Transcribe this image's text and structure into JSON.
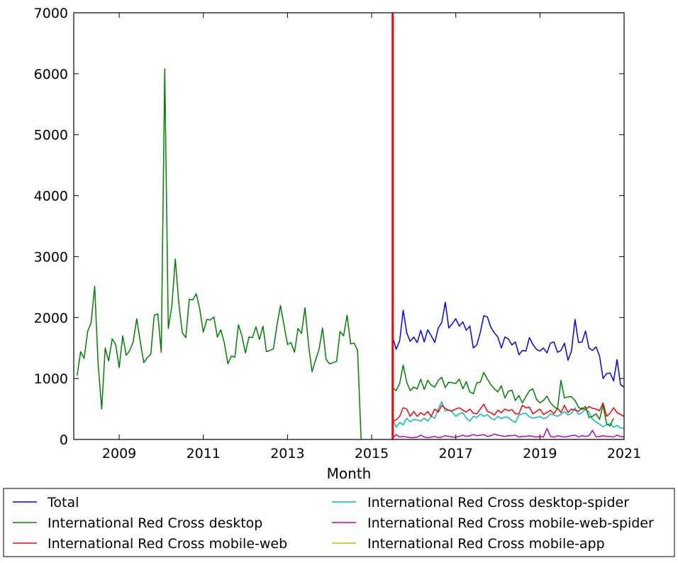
{
  "chart_data": {
    "type": "line",
    "title": "",
    "xlabel": "Month",
    "ylabel": "",
    "xlim": [
      2007.92,
      2021.0
    ],
    "ylim": [
      0,
      7000
    ],
    "x_ticks": [
      2009,
      2011,
      2013,
      2015,
      2017,
      2019,
      2021
    ],
    "x_tick_labels": [
      "2009",
      "2011",
      "2013",
      "2015",
      "2017",
      "2019",
      "2021"
    ],
    "y_ticks": [
      0,
      1000,
      2000,
      3000,
      4000,
      5000,
      6000,
      7000
    ],
    "y_tick_labels": [
      "0",
      "1000",
      "2000",
      "3000",
      "4000",
      "5000",
      "6000",
      "7000"
    ],
    "grid": false,
    "legend_position": "bottom",
    "annotations": [
      {
        "type": "vertical-line",
        "x": 2015.5,
        "color": "#ff0000"
      }
    ],
    "series": [
      {
        "name": "Total",
        "color": "#0000ff",
        "x_start": 2015.5,
        "x_step": 0.08333,
        "values": [
          1680,
          1480,
          1620,
          2120,
          1750,
          1610,
          1680,
          1590,
          1790,
          1600,
          1800,
          1700,
          1590,
          1830,
          1920,
          2250,
          1830,
          1900,
          1980,
          1860,
          1930,
          1790,
          1860,
          1500,
          1550,
          1760,
          2030,
          2010,
          1840,
          1750,
          1680,
          1500,
          1680,
          1650,
          1550,
          1600,
          1390,
          1460,
          1450,
          1670,
          1560,
          1480,
          1450,
          1500,
          1420,
          1580,
          1600,
          1430,
          1460,
          1580,
          1300,
          1450,
          1970,
          1590,
          1600,
          1780,
          1500,
          1460,
          1520,
          1370,
          1000,
          1080,
          1090,
          960,
          1310,
          900,
          860,
          930
        ]
      },
      {
        "name": "International Red Cross desktop",
        "color": "#008000",
        "x_start": 2008.0,
        "x_step": 0.08333,
        "values": [
          1050,
          1440,
          1330,
          1770,
          1920,
          2510,
          1230,
          500,
          1500,
          1290,
          1650,
          1560,
          1180,
          1700,
          1380,
          1460,
          1600,
          1980,
          1610,
          1260,
          1340,
          1400,
          2040,
          2060,
          1430,
          6080,
          1820,
          2180,
          2960,
          2240,
          1750,
          1670,
          2300,
          2290,
          2390,
          2130,
          1760,
          1970,
          1960,
          2010,
          1680,
          1800,
          1580,
          1240,
          1370,
          1350,
          1880,
          1700,
          1420,
          1680,
          1670,
          1850,
          1640,
          1860,
          1440,
          1460,
          1490,
          1870,
          2200,
          1880,
          1560,
          1590,
          1430,
          1820,
          1740,
          2160,
          1560,
          1110,
          1300,
          1480,
          1830,
          1310,
          1240,
          1260,
          1280,
          1770,
          1700,
          2040,
          1570,
          1580,
          1460,
          0,
          null,
          null,
          null,
          null,
          null,
          null,
          null,
          null,
          850,
          800,
          920,
          1220,
          940,
          800,
          860,
          830,
          990,
          820,
          970,
          890,
          860,
          970,
          1020,
          850,
          940,
          930,
          920,
          990,
          830,
          950,
          780,
          750,
          930,
          940,
          1100,
          990,
          900,
          830,
          780,
          880,
          680,
          790,
          810,
          640,
          720,
          600,
          700,
          800,
          830,
          660,
          600,
          640,
          710,
          600,
          540,
          500,
          970,
          680,
          700,
          700,
          640,
          530,
          490,
          540,
          360,
          380,
          420,
          330,
          560,
          260,
          220,
          350
        ]
      },
      {
        "name": "International Red Cross mobile-web",
        "color": "#ff0000",
        "x_start": 2015.5,
        "x_step": 0.08333,
        "values": [
          300,
          320,
          380,
          520,
          500,
          380,
          460,
          380,
          440,
          400,
          460,
          380,
          500,
          450,
          560,
          510,
          480,
          470,
          500,
          520,
          480,
          450,
          500,
          430,
          420,
          500,
          580,
          460,
          440,
          400,
          480,
          440,
          500,
          470,
          490,
          420,
          420,
          560,
          520,
          530,
          420,
          460,
          500,
          410,
          440,
          480,
          420,
          520,
          440,
          560,
          440,
          500,
          480,
          460,
          520,
          490,
          540,
          510,
          500,
          470,
          600,
          380,
          430,
          520,
          440,
          410,
          380,
          380
        ]
      },
      {
        "name": "International Red Cross desktop-spider",
        "color": "#00bfbf",
        "x_start": 2015.5,
        "x_step": 0.08333,
        "values": [
          320,
          200,
          280,
          240,
          350,
          290,
          330,
          320,
          300,
          350,
          300,
          380,
          350,
          500,
          620,
          470,
          480,
          450,
          380,
          420,
          440,
          350,
          300,
          380,
          360,
          420,
          380,
          410,
          350,
          320,
          380,
          340,
          370,
          360,
          310,
          280,
          400,
          420,
          430,
          370,
          350,
          360,
          380,
          340,
          360,
          420,
          400,
          380,
          410,
          460,
          400,
          430,
          520,
          410,
          440,
          500,
          450,
          330,
          290,
          250,
          210,
          240,
          260,
          200,
          230,
          190,
          180,
          220
        ]
      },
      {
        "name": "International Red Cross mobile-web-spider",
        "color": "#bf00bf",
        "x_start": 2015.5,
        "x_step": 0.08333,
        "values": [
          20,
          80,
          40,
          50,
          40,
          30,
          30,
          40,
          70,
          40,
          30,
          40,
          50,
          30,
          40,
          60,
          50,
          40,
          40,
          50,
          70,
          50,
          60,
          80,
          60,
          70,
          80,
          50,
          60,
          90,
          70,
          60,
          50,
          60,
          60,
          70,
          40,
          50,
          50,
          60,
          50,
          40,
          50,
          40,
          180,
          50,
          40,
          60,
          50,
          40,
          50,
          60,
          70,
          40,
          60,
          50,
          60,
          150,
          40,
          50,
          60,
          50,
          50,
          40,
          70,
          50,
          40,
          50
        ]
      },
      {
        "name": "International Red Cross mobile-app",
        "color": "#bfbf00",
        "x_start": 2015.5,
        "x_step": 0.08333,
        "values": [
          0,
          0,
          0,
          0,
          0,
          0,
          0,
          0,
          0,
          0,
          0,
          0,
          0,
          0,
          0,
          0,
          0,
          0,
          0,
          0,
          0,
          0,
          0,
          0,
          0,
          0,
          0,
          0,
          0,
          0,
          0,
          0,
          0,
          0,
          0,
          0,
          0,
          0,
          0,
          0,
          0,
          0,
          0,
          0,
          0,
          0,
          0,
          0,
          0,
          0,
          0,
          0,
          0,
          0,
          0,
          0,
          0,
          0,
          0,
          0,
          0,
          0,
          0,
          0,
          0,
          0,
          0,
          0
        ]
      }
    ],
    "legend_entries": [
      "Total",
      "International Red Cross desktop",
      "International Red Cross mobile-web",
      "International Red Cross desktop-spider",
      "International Red Cross mobile-web-spider",
      "International Red Cross mobile-app"
    ]
  }
}
